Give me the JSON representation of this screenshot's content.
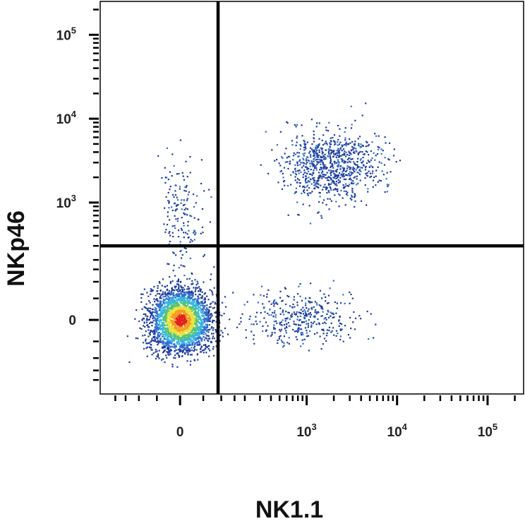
{
  "chart_data": {
    "type": "scatter",
    "plot_kind": "flow cytometry density dot plot, biexponential axes",
    "xlabel": "NK1.1",
    "ylabel": "NKp46",
    "x_scale": "biexponential",
    "y_scale": "biexponential",
    "x_ticks": [
      {
        "value": 0,
        "base": "0",
        "exp": ""
      },
      {
        "value": 1000,
        "base": "10",
        "exp": "3"
      },
      {
        "value": 10000,
        "base": "10",
        "exp": "4"
      },
      {
        "value": 100000,
        "base": "10",
        "exp": "5"
      }
    ],
    "y_ticks": [
      {
        "value": 0,
        "base": "0",
        "exp": ""
      },
      {
        "value": 1000,
        "base": "10",
        "exp": "3"
      },
      {
        "value": 10000,
        "base": "10",
        "exp": "4"
      },
      {
        "value": 100000,
        "base": "10",
        "exp": "5"
      }
    ],
    "xlim": [
      -300,
      250000
    ],
    "ylim": [
      -300,
      250000
    ],
    "quadrant_gates": {
      "x": 90,
      "y": 300
    },
    "density_colors": [
      "#1f3b9e",
      "#2f6fcf",
      "#35b6e0",
      "#55c27a",
      "#e8e23a",
      "#f59a23",
      "#e0231c"
    ],
    "populations": [
      {
        "name": "",
        "center_x": 0,
        "center_y": 0,
        "spread_x": 35,
        "spread_y": 40,
        "count": 2600,
        "colored_by_density": true
      },
      {
        "name": "",
        "center_x": 1800,
        "center_y": 2800,
        "spread_x": 0.28,
        "spread_y": 0.2,
        "count": 850,
        "colored_by_density": false
      },
      {
        "name": "",
        "center_x": 900,
        "center_y": 5,
        "spread_x": 0.3,
        "spread_y": 30,
        "count": 380,
        "colored_by_density": false
      },
      {
        "name": "",
        "center_x": 0,
        "center_y": 700,
        "spread_x": 25,
        "spread_y": 0.35,
        "count": 170,
        "colored_by_density": false
      }
    ],
    "grid": false,
    "legend": "none"
  }
}
